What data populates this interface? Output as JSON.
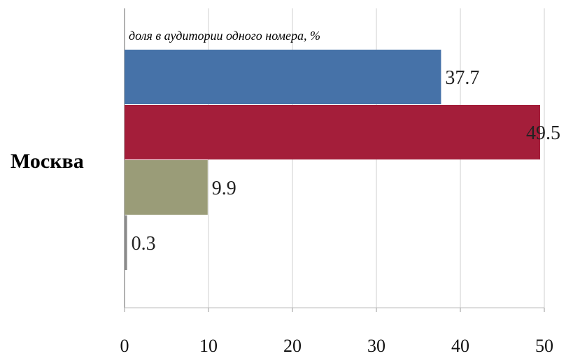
{
  "chart_data": {
    "type": "bar",
    "orientation": "horizontal",
    "title": "доля в аудитории одного номера, %",
    "categories": [
      "Москва"
    ],
    "bars": [
      {
        "value": 37.7,
        "label": "37.7",
        "color": "#4672A8"
      },
      {
        "value": 49.5,
        "label": "49.5",
        "color": "#A41E3A"
      },
      {
        "value": 9.9,
        "label": "9.9",
        "color": "#9A9C78"
      },
      {
        "value": 0.3,
        "label": "0.3",
        "color": "#8A8A8A"
      }
    ],
    "xlim": [
      0,
      50
    ],
    "xticks": [
      "0",
      "10",
      "20",
      "30",
      "40",
      "50"
    ],
    "grid": "vertical",
    "legend": "none"
  }
}
